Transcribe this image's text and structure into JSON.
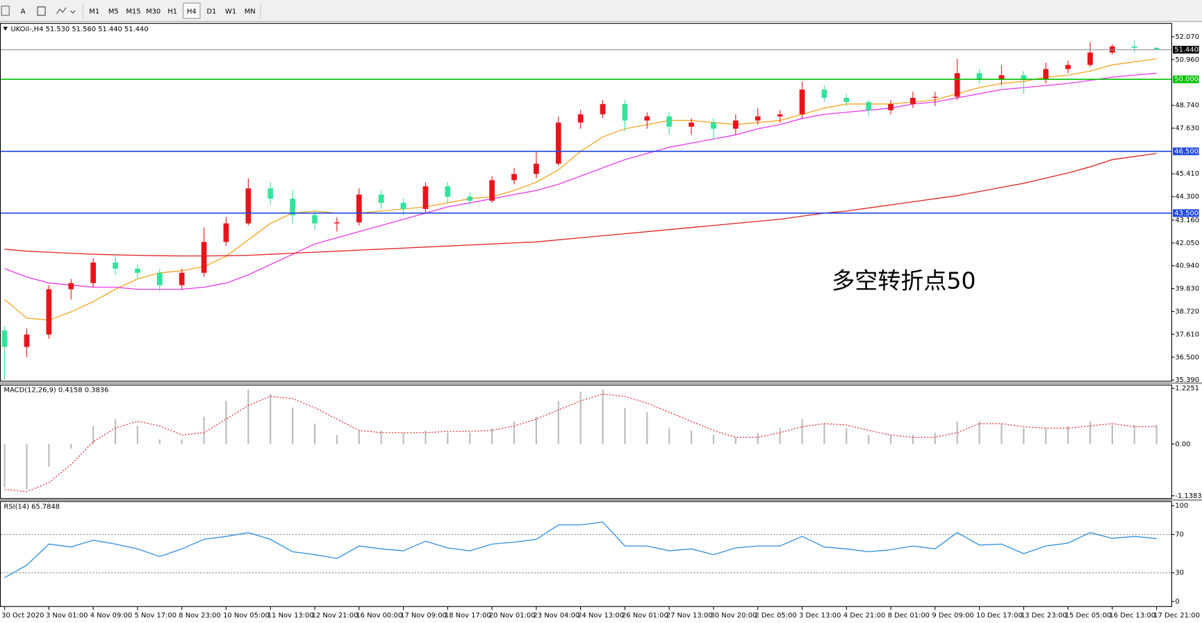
{
  "toolbar": {
    "text_tool": "A",
    "timeframes": [
      "M1",
      "M5",
      "M15",
      "M30",
      "H1",
      "H4",
      "D1",
      "W1",
      "MN"
    ]
  },
  "chart_data": [
    {
      "type": "candlestick",
      "title": "UKOil-,H4  51.530 51.560 51.440 51.440",
      "annotation": {
        "text": "多空转折点50",
        "color": "#e8231f"
      },
      "categories": [
        "30 Oct 2020",
        null,
        "3 Nov 01:00",
        null,
        "4 Nov 09:00",
        null,
        "5 Nov 17:00",
        null,
        "8 Nov 23:00",
        null,
        "10 Nov 05:00",
        null,
        "11 Nov 13:00",
        null,
        "12 Nov 21:00",
        null,
        "16 Nov 00:00",
        null,
        "17 Nov 09:00",
        null,
        "18 Nov 17:00",
        null,
        "20 Nov 01:00",
        null,
        "23 Nov 04:00",
        null,
        "24 Nov 13:00",
        null,
        "26 Nov 01:00",
        null,
        "27 Nov 13:00",
        null,
        "30 Nov 20:00",
        null,
        "2 Dec 05:00",
        null,
        "3 Dec 13:00",
        null,
        "4 Dec 21:00",
        null,
        "8 Dec 01:00",
        null,
        "9 Dec 09:00",
        null,
        "10 Dec 17:00",
        null,
        "13 Dec 23:00",
        null,
        "15 Dec 05:00",
        null,
        "16 Dec 13:00",
        null,
        "17 Dec 21:00"
      ],
      "open": [
        37.8,
        37.0,
        37.6,
        39.8,
        40.1,
        41.1,
        40.8,
        40.6,
        40.0,
        40.6,
        42.1,
        43.0,
        44.7,
        44.2,
        43.4,
        43.0,
        43.05,
        44.4,
        44.0,
        43.7,
        44.8,
        44.3,
        44.1,
        45.1,
        45.4,
        45.9,
        47.9,
        48.3,
        48.8,
        48.0,
        48.2,
        47.7,
        47.9,
        47.6,
        48.0,
        48.2,
        48.3,
        49.5,
        49.1,
        48.9,
        48.5,
        48.8,
        49.1,
        49.15,
        50.3,
        50.0,
        50.2,
        50.0,
        50.5,
        50.7,
        51.3,
        51.6,
        51.53
      ],
      "high": [
        38.0,
        37.9,
        40.0,
        40.3,
        41.3,
        41.4,
        41.0,
        40.8,
        40.8,
        42.8,
        43.3,
        45.2,
        45.0,
        44.6,
        43.6,
        43.3,
        44.7,
        44.6,
        44.2,
        45.0,
        45.0,
        44.5,
        45.3,
        45.7,
        46.5,
        48.2,
        48.5,
        49.0,
        49.0,
        48.4,
        48.4,
        48.1,
        48.1,
        48.3,
        48.6,
        48.5,
        49.9,
        49.7,
        49.3,
        49.0,
        49.0,
        49.4,
        49.4,
        51.0,
        50.5,
        50.7,
        50.4,
        50.8,
        50.9,
        51.8,
        51.7,
        51.9,
        51.56
      ],
      "low": [
        35.4,
        36.5,
        37.4,
        39.3,
        39.9,
        40.5,
        40.3,
        39.7,
        39.8,
        40.4,
        41.9,
        42.9,
        43.9,
        43.0,
        42.7,
        42.6,
        42.9,
        43.7,
        43.4,
        43.5,
        44.0,
        43.9,
        44.0,
        44.9,
        45.2,
        45.8,
        47.6,
        48.1,
        47.5,
        47.6,
        47.3,
        47.3,
        47.1,
        47.3,
        47.8,
        47.9,
        48.1,
        48.9,
        48.7,
        48.2,
        48.3,
        48.6,
        48.7,
        49.0,
        49.8,
        49.7,
        49.3,
        49.8,
        50.3,
        50.6,
        51.2,
        51.3,
        51.44
      ],
      "close": [
        37.0,
        37.6,
        39.8,
        40.1,
        41.1,
        40.8,
        40.6,
        40.0,
        40.6,
        42.1,
        43.0,
        44.7,
        44.2,
        43.4,
        43.0,
        43.05,
        44.4,
        44.0,
        43.7,
        44.8,
        44.3,
        44.1,
        45.1,
        45.4,
        45.9,
        47.9,
        48.3,
        48.8,
        48.0,
        48.2,
        47.7,
        47.9,
        47.6,
        48.0,
        48.2,
        48.3,
        49.5,
        49.1,
        48.9,
        48.5,
        48.8,
        49.1,
        49.15,
        50.3,
        50.0,
        50.2,
        50.0,
        50.5,
        50.7,
        51.3,
        51.6,
        51.53,
        51.44
      ],
      "up_color": "#e8141c",
      "down_color": "#33e39a",
      "lines": [
        {
          "color": "#f5a623",
          "values": [
            39.3,
            38.4,
            38.3,
            38.7,
            39.2,
            39.8,
            40.3,
            40.6,
            40.7,
            40.9,
            41.4,
            42.2,
            43.0,
            43.5,
            43.6,
            43.5,
            43.5,
            43.6,
            43.7,
            43.8,
            44.0,
            44.2,
            44.3,
            44.6,
            45.0,
            45.6,
            46.5,
            47.2,
            47.6,
            47.8,
            48.0,
            48.0,
            47.9,
            47.8,
            47.9,
            48.0,
            48.3,
            48.6,
            48.8,
            48.8,
            48.8,
            48.9,
            49.0,
            49.3,
            49.6,
            49.8,
            49.9,
            50.1,
            50.2,
            50.4,
            50.7,
            50.85,
            51.0
          ]
        },
        {
          "color": "#e83ae8",
          "values": [
            40.8,
            40.4,
            40.1,
            40.0,
            39.9,
            39.9,
            39.8,
            39.8,
            39.8,
            39.9,
            40.1,
            40.5,
            41.0,
            41.5,
            42.0,
            42.3,
            42.6,
            42.9,
            43.2,
            43.5,
            43.8,
            44.0,
            44.2,
            44.4,
            44.6,
            44.9,
            45.3,
            45.7,
            46.1,
            46.4,
            46.7,
            46.9,
            47.1,
            47.3,
            47.6,
            47.8,
            48.1,
            48.3,
            48.4,
            48.5,
            48.6,
            48.8,
            48.9,
            49.1,
            49.3,
            49.5,
            49.6,
            49.7,
            49.8,
            49.95,
            50.1,
            50.2,
            50.3
          ]
        },
        {
          "color": "#e02424",
          "values": [
            41.75,
            41.65,
            41.6,
            41.55,
            41.5,
            41.47,
            41.45,
            41.43,
            41.42,
            41.42,
            41.43,
            41.45,
            41.5,
            41.55,
            41.6,
            41.65,
            41.7,
            41.75,
            41.8,
            41.85,
            41.9,
            41.95,
            42.0,
            42.05,
            42.1,
            42.2,
            42.3,
            42.4,
            42.5,
            42.6,
            42.7,
            42.8,
            42.9,
            43.0,
            43.1,
            43.2,
            43.35,
            43.5,
            43.6,
            43.75,
            43.9,
            44.05,
            44.2,
            44.35,
            44.55,
            44.75,
            44.95,
            45.2,
            45.45,
            45.75,
            46.1,
            46.25,
            46.4
          ]
        }
      ],
      "levels": [
        {
          "value": 51.44,
          "label": "51.440",
          "color": "#8c9aa8",
          "tag_color": "#000000"
        },
        {
          "value": 50.0,
          "label": "50.000",
          "color": "#00c000",
          "tag_color": "#00c000"
        },
        {
          "value": 46.5,
          "label": "46.500",
          "color": "#1e46e0",
          "tag_color": "#1e46e0"
        },
        {
          "value": 43.5,
          "label": "43.500",
          "color": "#1e46e0",
          "tag_color": "#1e46e0"
        }
      ],
      "ylim": [
        35.35,
        52.7
      ],
      "yticks": [
        {
          "value": 52.07,
          "label": "52.070"
        },
        {
          "value": 50.96,
          "label": "50.960"
        },
        {
          "value": 48.74,
          "label": "48.740"
        },
        {
          "value": 47.63,
          "label": "47.630"
        },
        {
          "value": 45.41,
          "label": "45.410"
        },
        {
          "value": 44.3,
          "label": "44.300"
        },
        {
          "value": 43.16,
          "label": "43.160"
        },
        {
          "value": 42.05,
          "label": "42.050"
        },
        {
          "value": 40.94,
          "label": "40.940"
        },
        {
          "value": 39.83,
          "label": "39.830"
        },
        {
          "value": 38.72,
          "label": "38.720"
        },
        {
          "value": 37.61,
          "label": "37.610"
        },
        {
          "value": 36.5,
          "label": "36.500"
        },
        {
          "value": 35.39,
          "label": "35.390"
        }
      ]
    },
    {
      "type": "macd",
      "title": "MACD(12,26,9) 0.4158 0.3836",
      "histogram": {
        "color": "#bdbdbd",
        "values": [
          -0.95,
          -1.0,
          -0.5,
          -0.1,
          0.4,
          0.55,
          0.4,
          0.1,
          0.1,
          0.6,
          0.95,
          1.2,
          1.1,
          0.8,
          0.45,
          0.2,
          0.3,
          0.3,
          0.25,
          0.3,
          0.25,
          0.25,
          0.35,
          0.5,
          0.6,
          0.95,
          1.15,
          1.2,
          0.8,
          0.7,
          0.35,
          0.3,
          0.2,
          0.15,
          0.25,
          0.35,
          0.55,
          0.45,
          0.35,
          0.2,
          0.2,
          0.2,
          0.25,
          0.5,
          0.5,
          0.45,
          0.35,
          0.35,
          0.4,
          0.5,
          0.42,
          0.42,
          0.4158
        ]
      },
      "signal": {
        "color": "#e02020",
        "values": [
          -1.0,
          -1.05,
          -0.85,
          -0.45,
          0.05,
          0.35,
          0.5,
          0.4,
          0.2,
          0.25,
          0.55,
          0.85,
          1.05,
          1.0,
          0.8,
          0.55,
          0.3,
          0.25,
          0.25,
          0.25,
          0.28,
          0.28,
          0.3,
          0.4,
          0.55,
          0.75,
          0.95,
          1.1,
          1.05,
          0.9,
          0.7,
          0.5,
          0.3,
          0.15,
          0.15,
          0.25,
          0.38,
          0.45,
          0.42,
          0.3,
          0.2,
          0.15,
          0.15,
          0.25,
          0.45,
          0.45,
          0.38,
          0.35,
          0.35,
          0.4,
          0.45,
          0.38,
          0.3836
        ]
      },
      "ylim": [
        -1.19,
        1.29
      ],
      "yticks": [
        1.2251,
        {
          "value": 0,
          "label": "0.00"
        },
        -1.1383
      ]
    },
    {
      "type": "line",
      "title": "RSI(14) 65.7848",
      "color": "#2f8fe0",
      "values": [
        25,
        38,
        60,
        57,
        64,
        60,
        55,
        47,
        55,
        65,
        68,
        72,
        65,
        52,
        49,
        45,
        58,
        55,
        53,
        63,
        56,
        53,
        60,
        62,
        65,
        80,
        80,
        83,
        58,
        58,
        53,
        55,
        49,
        56,
        58,
        58,
        68,
        57,
        55,
        52,
        54,
        58,
        55,
        72,
        59,
        60,
        50,
        58,
        61,
        72,
        66,
        68,
        65.7848
      ],
      "levels": [
        70,
        30
      ],
      "ylim": [
        -4.8,
        104
      ],
      "yticks": [
        100,
        70,
        30,
        0
      ]
    }
  ]
}
